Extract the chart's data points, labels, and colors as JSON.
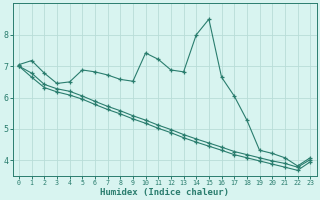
{
  "x": [
    0,
    1,
    2,
    3,
    4,
    5,
    6,
    7,
    8,
    9,
    10,
    11,
    12,
    13,
    14,
    15,
    16,
    17,
    18,
    19,
    20,
    21,
    22,
    23
  ],
  "line1": [
    7.05,
    7.18,
    6.78,
    6.45,
    6.5,
    6.88,
    6.82,
    6.72,
    6.58,
    6.52,
    7.42,
    7.22,
    6.88,
    6.82,
    8.0,
    8.5,
    6.65,
    6.05,
    5.28,
    4.32,
    4.22,
    4.08,
    3.82,
    4.08
  ],
  "line2": [
    7.0,
    6.78,
    6.42,
    6.28,
    6.2,
    6.05,
    5.88,
    5.72,
    5.58,
    5.42,
    5.28,
    5.12,
    4.98,
    4.82,
    4.68,
    4.55,
    4.42,
    4.28,
    4.18,
    4.08,
    3.98,
    3.9,
    3.78,
    4.02
  ],
  "line3": [
    7.0,
    6.65,
    6.32,
    6.18,
    6.08,
    5.95,
    5.78,
    5.62,
    5.48,
    5.32,
    5.18,
    5.02,
    4.88,
    4.72,
    4.58,
    4.45,
    4.32,
    4.18,
    4.08,
    3.98,
    3.88,
    3.78,
    3.68,
    3.95
  ],
  "line_color": "#2a7d6e",
  "bg_color": "#d8f4f0",
  "grid_color": "#b8ddd8",
  "xlabel": "Humidex (Indice chaleur)",
  "ylim": [
    3.5,
    9.0
  ],
  "xlim": [
    -0.5,
    23.5
  ],
  "yticks": [
    4,
    5,
    6,
    7,
    8
  ],
  "xticks": [
    0,
    1,
    2,
    3,
    4,
    5,
    6,
    7,
    8,
    9,
    10,
    11,
    12,
    13,
    14,
    15,
    16,
    17,
    18,
    19,
    20,
    21,
    22,
    23
  ]
}
